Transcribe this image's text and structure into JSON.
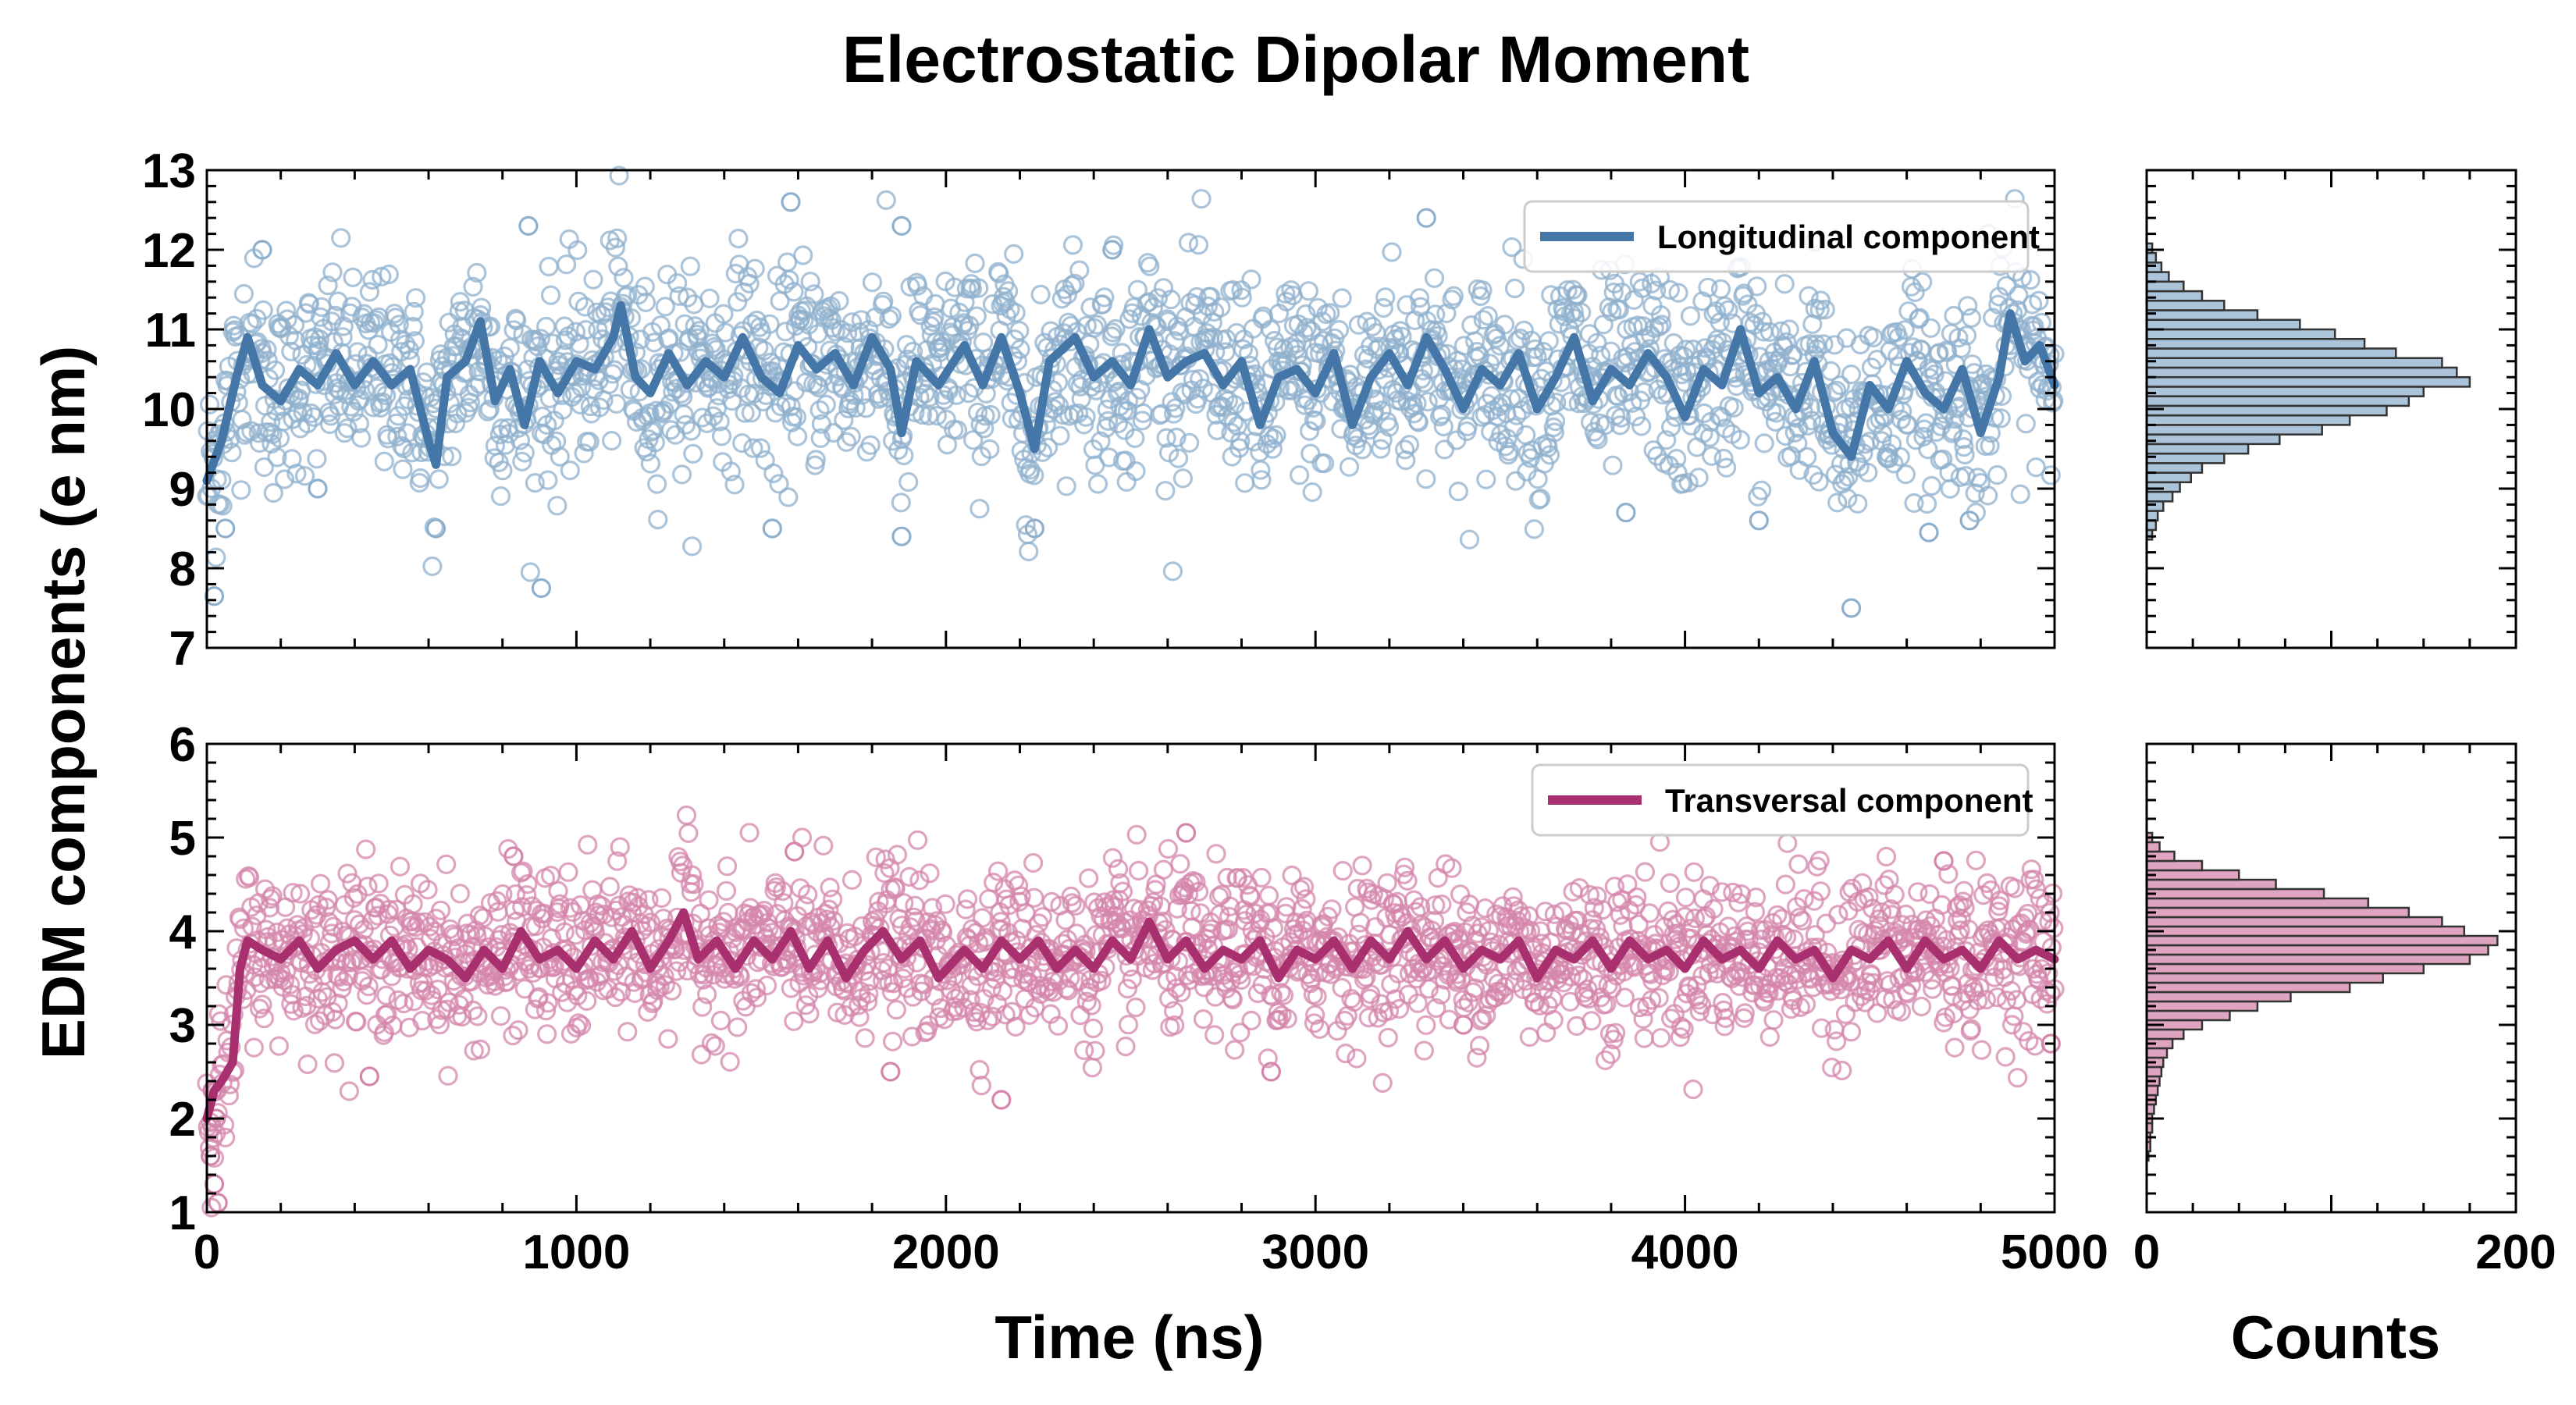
{
  "figure": {
    "title": "Electrostatic Dipolar Moment",
    "ylabel": "EDM components (e nm)",
    "xlabel_time": "Time (ns)",
    "xlabel_counts": "Counts"
  },
  "chart_data": [
    {
      "id": "longitudinal",
      "type": "scatter",
      "name": "Longitudinal component",
      "color": "#4476a8",
      "point_color": "#8fb0cc",
      "xlim": [
        0,
        5000
      ],
      "ylim": [
        7,
        13
      ],
      "x_ticks": [
        0,
        1000,
        2000,
        3000,
        4000,
        5000
      ],
      "y_ticks": [
        7,
        8,
        9,
        10,
        11,
        12,
        13
      ],
      "x_tick_labels": [
        "",
        "",
        "",
        "",
        "",
        ""
      ],
      "y_tick_labels": [
        "7",
        "8",
        "9",
        "10",
        "11",
        "12",
        "13"
      ],
      "n_points": 2000,
      "equilibrium_mean": 10.45,
      "point_spread": 0.62,
      "outliers": [
        [
          150,
          12.0
        ],
        [
          870,
          12.3
        ],
        [
          1580,
          12.6
        ],
        [
          1880,
          12.3
        ],
        [
          2450,
          12.0
        ],
        [
          3300,
          12.4
        ],
        [
          4350,
          12.1
        ],
        [
          4820,
          12.2
        ],
        [
          300,
          9.0
        ],
        [
          905,
          7.75
        ],
        [
          1530,
          8.5
        ],
        [
          1880,
          8.4
        ],
        [
          2240,
          8.5
        ],
        [
          4450,
          7.5
        ],
        [
          4660,
          8.45
        ],
        [
          4770,
          8.6
        ],
        [
          20,
          7.65
        ],
        [
          50,
          8.5
        ],
        [
          620,
          8.5
        ],
        [
          3840,
          8.7
        ],
        [
          4200,
          8.6
        ]
      ],
      "moving_average": [
        [
          0,
          9.1
        ],
        [
          40,
          9.6
        ],
        [
          80,
          10.4
        ],
        [
          110,
          10.9
        ],
        [
          150,
          10.3
        ],
        [
          200,
          10.1
        ],
        [
          250,
          10.5
        ],
        [
          300,
          10.3
        ],
        [
          350,
          10.7
        ],
        [
          400,
          10.3
        ],
        [
          450,
          10.6
        ],
        [
          500,
          10.3
        ],
        [
          550,
          10.5
        ],
        [
          600,
          9.6
        ],
        [
          620,
          9.3
        ],
        [
          650,
          10.4
        ],
        [
          700,
          10.6
        ],
        [
          740,
          11.1
        ],
        [
          780,
          10.1
        ],
        [
          820,
          10.5
        ],
        [
          860,
          9.8
        ],
        [
          900,
          10.6
        ],
        [
          950,
          10.2
        ],
        [
          1000,
          10.6
        ],
        [
          1050,
          10.5
        ],
        [
          1100,
          10.9
        ],
        [
          1120,
          11.3
        ],
        [
          1160,
          10.4
        ],
        [
          1200,
          10.2
        ],
        [
          1250,
          10.7
        ],
        [
          1300,
          10.3
        ],
        [
          1350,
          10.6
        ],
        [
          1400,
          10.4
        ],
        [
          1450,
          10.9
        ],
        [
          1500,
          10.4
        ],
        [
          1550,
          10.2
        ],
        [
          1600,
          10.8
        ],
        [
          1650,
          10.5
        ],
        [
          1700,
          10.7
        ],
        [
          1750,
          10.3
        ],
        [
          1800,
          10.9
        ],
        [
          1850,
          10.5
        ],
        [
          1880,
          9.7
        ],
        [
          1920,
          10.6
        ],
        [
          1980,
          10.3
        ],
        [
          2050,
          10.8
        ],
        [
          2100,
          10.3
        ],
        [
          2150,
          10.9
        ],
        [
          2200,
          10.2
        ],
        [
          2240,
          9.5
        ],
        [
          2280,
          10.6
        ],
        [
          2350,
          10.9
        ],
        [
          2400,
          10.4
        ],
        [
          2450,
          10.6
        ],
        [
          2500,
          10.3
        ],
        [
          2550,
          11.0
        ],
        [
          2600,
          10.4
        ],
        [
          2650,
          10.6
        ],
        [
          2700,
          10.7
        ],
        [
          2750,
          10.3
        ],
        [
          2800,
          10.6
        ],
        [
          2850,
          9.8
        ],
        [
          2900,
          10.4
        ],
        [
          2950,
          10.5
        ],
        [
          3000,
          10.2
        ],
        [
          3050,
          10.7
        ],
        [
          3100,
          9.8
        ],
        [
          3150,
          10.4
        ],
        [
          3200,
          10.7
        ],
        [
          3250,
          10.3
        ],
        [
          3300,
          10.9
        ],
        [
          3350,
          10.5
        ],
        [
          3400,
          10.0
        ],
        [
          3450,
          10.5
        ],
        [
          3500,
          10.3
        ],
        [
          3550,
          10.7
        ],
        [
          3600,
          10.0
        ],
        [
          3650,
          10.4
        ],
        [
          3700,
          10.9
        ],
        [
          3750,
          10.1
        ],
        [
          3800,
          10.5
        ],
        [
          3850,
          10.3
        ],
        [
          3900,
          10.7
        ],
        [
          3950,
          10.4
        ],
        [
          4000,
          9.9
        ],
        [
          4050,
          10.5
        ],
        [
          4100,
          10.3
        ],
        [
          4150,
          11.0
        ],
        [
          4200,
          10.2
        ],
        [
          4250,
          10.4
        ],
        [
          4300,
          10.0
        ],
        [
          4350,
          10.6
        ],
        [
          4400,
          9.7
        ],
        [
          4450,
          9.4
        ],
        [
          4500,
          10.3
        ],
        [
          4550,
          10.0
        ],
        [
          4600,
          10.6
        ],
        [
          4650,
          10.2
        ],
        [
          4700,
          10.0
        ],
        [
          4750,
          10.5
        ],
        [
          4800,
          9.7
        ],
        [
          4850,
          10.4
        ],
        [
          4880,
          11.2
        ],
        [
          4920,
          10.6
        ],
        [
          4960,
          10.8
        ],
        [
          5000,
          10.3
        ]
      ],
      "histogram": {
        "xlim": [
          0,
          200
        ],
        "bin_width": 0.12,
        "bins": [
          [
            8.42,
            3
          ],
          [
            8.54,
            5
          ],
          [
            8.66,
            6
          ],
          [
            8.78,
            9
          ],
          [
            8.9,
            14
          ],
          [
            9.02,
            18
          ],
          [
            9.14,
            24
          ],
          [
            9.26,
            30
          ],
          [
            9.38,
            42
          ],
          [
            9.5,
            55
          ],
          [
            9.62,
            72
          ],
          [
            9.74,
            95
          ],
          [
            9.86,
            110
          ],
          [
            9.98,
            130
          ],
          [
            10.1,
            142
          ],
          [
            10.22,
            150
          ],
          [
            10.34,
            175
          ],
          [
            10.46,
            168
          ],
          [
            10.58,
            160
          ],
          [
            10.7,
            135
          ],
          [
            10.82,
            118
          ],
          [
            10.94,
            102
          ],
          [
            11.06,
            83
          ],
          [
            11.18,
            60
          ],
          [
            11.3,
            42
          ],
          [
            11.42,
            30
          ],
          [
            11.54,
            20
          ],
          [
            11.66,
            12
          ],
          [
            11.78,
            8
          ],
          [
            11.9,
            5
          ],
          [
            12.02,
            3
          ]
        ]
      }
    },
    {
      "id": "transversal",
      "type": "scatter",
      "name": "Transversal component",
      "color": "#a8306e",
      "point_color": "#d486ab",
      "xlim": [
        0,
        5000
      ],
      "ylim": [
        1,
        6
      ],
      "x_ticks": [
        0,
        1000,
        2000,
        3000,
        4000,
        5000
      ],
      "y_ticks": [
        1,
        2,
        3,
        4,
        5,
        6
      ],
      "x_tick_labels": [
        "0",
        "1000",
        "2000",
        "3000",
        "4000",
        "5000"
      ],
      "y_tick_labels": [
        "1",
        "2",
        "3",
        "4",
        "5",
        "6"
      ],
      "n_points": 2000,
      "equilibrium_mean": 3.75,
      "point_spread": 0.42,
      "outliers": [
        [
          10,
          1.6
        ],
        [
          20,
          1.3
        ],
        [
          30,
          1.1
        ],
        [
          15,
          2.3
        ],
        [
          25,
          2.0
        ],
        [
          440,
          2.45
        ],
        [
          1850,
          2.5
        ],
        [
          2150,
          2.2
        ],
        [
          2880,
          2.5
        ],
        [
          4990,
          2.8
        ],
        [
          3400,
          3.0
        ],
        [
          1590,
          4.85
        ],
        [
          2650,
          5.05
        ],
        [
          830,
          4.8
        ],
        [
          4700,
          4.75
        ]
      ],
      "moving_average": [
        [
          0,
          2.0
        ],
        [
          20,
          2.3
        ],
        [
          40,
          2.4
        ],
        [
          70,
          2.6
        ],
        [
          90,
          3.6
        ],
        [
          110,
          3.9
        ],
        [
          150,
          3.8
        ],
        [
          200,
          3.7
        ],
        [
          250,
          3.9
        ],
        [
          300,
          3.6
        ],
        [
          350,
          3.8
        ],
        [
          400,
          3.9
        ],
        [
          450,
          3.7
        ],
        [
          500,
          3.9
        ],
        [
          550,
          3.6
        ],
        [
          600,
          3.8
        ],
        [
          650,
          3.7
        ],
        [
          700,
          3.5
        ],
        [
          750,
          3.8
        ],
        [
          800,
          3.6
        ],
        [
          850,
          4.0
        ],
        [
          900,
          3.7
        ],
        [
          950,
          3.8
        ],
        [
          1000,
          3.6
        ],
        [
          1050,
          3.9
        ],
        [
          1100,
          3.7
        ],
        [
          1150,
          4.0
        ],
        [
          1200,
          3.6
        ],
        [
          1250,
          3.9
        ],
        [
          1290,
          4.2
        ],
        [
          1330,
          3.7
        ],
        [
          1380,
          3.9
        ],
        [
          1430,
          3.6
        ],
        [
          1480,
          3.9
        ],
        [
          1530,
          3.7
        ],
        [
          1580,
          4.0
        ],
        [
          1630,
          3.6
        ],
        [
          1680,
          3.9
        ],
        [
          1730,
          3.5
        ],
        [
          1780,
          3.8
        ],
        [
          1830,
          4.0
        ],
        [
          1880,
          3.7
        ],
        [
          1930,
          3.9
        ],
        [
          1980,
          3.5
        ],
        [
          2050,
          3.8
        ],
        [
          2100,
          3.6
        ],
        [
          2150,
          3.9
        ],
        [
          2200,
          3.7
        ],
        [
          2250,
          3.9
        ],
        [
          2300,
          3.6
        ],
        [
          2350,
          3.8
        ],
        [
          2400,
          3.6
        ],
        [
          2450,
          3.9
        ],
        [
          2500,
          3.7
        ],
        [
          2550,
          4.1
        ],
        [
          2600,
          3.7
        ],
        [
          2650,
          3.9
        ],
        [
          2700,
          3.6
        ],
        [
          2750,
          3.8
        ],
        [
          2800,
          3.7
        ],
        [
          2850,
          3.9
        ],
        [
          2900,
          3.5
        ],
        [
          2950,
          3.8
        ],
        [
          3000,
          3.7
        ],
        [
          3050,
          3.9
        ],
        [
          3100,
          3.6
        ],
        [
          3150,
          3.9
        ],
        [
          3200,
          3.7
        ],
        [
          3250,
          4.0
        ],
        [
          3300,
          3.7
        ],
        [
          3350,
          3.9
        ],
        [
          3400,
          3.6
        ],
        [
          3450,
          3.8
        ],
        [
          3500,
          3.7
        ],
        [
          3550,
          3.9
        ],
        [
          3600,
          3.5
        ],
        [
          3650,
          3.8
        ],
        [
          3700,
          3.7
        ],
        [
          3750,
          3.9
        ],
        [
          3800,
          3.6
        ],
        [
          3850,
          3.9
        ],
        [
          3900,
          3.7
        ],
        [
          3950,
          3.8
        ],
        [
          4000,
          3.6
        ],
        [
          4050,
          3.9
        ],
        [
          4100,
          3.7
        ],
        [
          4150,
          3.8
        ],
        [
          4200,
          3.6
        ],
        [
          4250,
          3.9
        ],
        [
          4300,
          3.7
        ],
        [
          4350,
          3.8
        ],
        [
          4400,
          3.5
        ],
        [
          4450,
          3.8
        ],
        [
          4500,
          3.7
        ],
        [
          4550,
          3.9
        ],
        [
          4600,
          3.6
        ],
        [
          4650,
          3.9
        ],
        [
          4700,
          3.7
        ],
        [
          4750,
          3.8
        ],
        [
          4800,
          3.6
        ],
        [
          4850,
          3.9
        ],
        [
          4900,
          3.7
        ],
        [
          4950,
          3.8
        ],
        [
          5000,
          3.7
        ]
      ],
      "histogram": {
        "xlim": [
          0,
          200
        ],
        "x_ticks": [
          0,
          200
        ],
        "x_tick_labels": [
          "0",
          "200"
        ],
        "bin_width": 0.1,
        "bins": [
          [
            1.6,
            1
          ],
          [
            1.7,
            2
          ],
          [
            1.8,
            2
          ],
          [
            1.9,
            3
          ],
          [
            2.0,
            3
          ],
          [
            2.1,
            4
          ],
          [
            2.2,
            5
          ],
          [
            2.3,
            6
          ],
          [
            2.4,
            7
          ],
          [
            2.5,
            8
          ],
          [
            2.6,
            9
          ],
          [
            2.7,
            11
          ],
          [
            2.8,
            14
          ],
          [
            2.9,
            20
          ],
          [
            3.0,
            30
          ],
          [
            3.1,
            45
          ],
          [
            3.2,
            60
          ],
          [
            3.3,
            78
          ],
          [
            3.4,
            110
          ],
          [
            3.5,
            128
          ],
          [
            3.6,
            150
          ],
          [
            3.7,
            175
          ],
          [
            3.8,
            185
          ],
          [
            3.9,
            190
          ],
          [
            4.0,
            172
          ],
          [
            4.1,
            160
          ],
          [
            4.2,
            142
          ],
          [
            4.3,
            120
          ],
          [
            4.4,
            96
          ],
          [
            4.5,
            70
          ],
          [
            4.6,
            50
          ],
          [
            4.7,
            30
          ],
          [
            4.8,
            15
          ],
          [
            4.9,
            7
          ],
          [
            5.0,
            3
          ]
        ]
      }
    }
  ]
}
